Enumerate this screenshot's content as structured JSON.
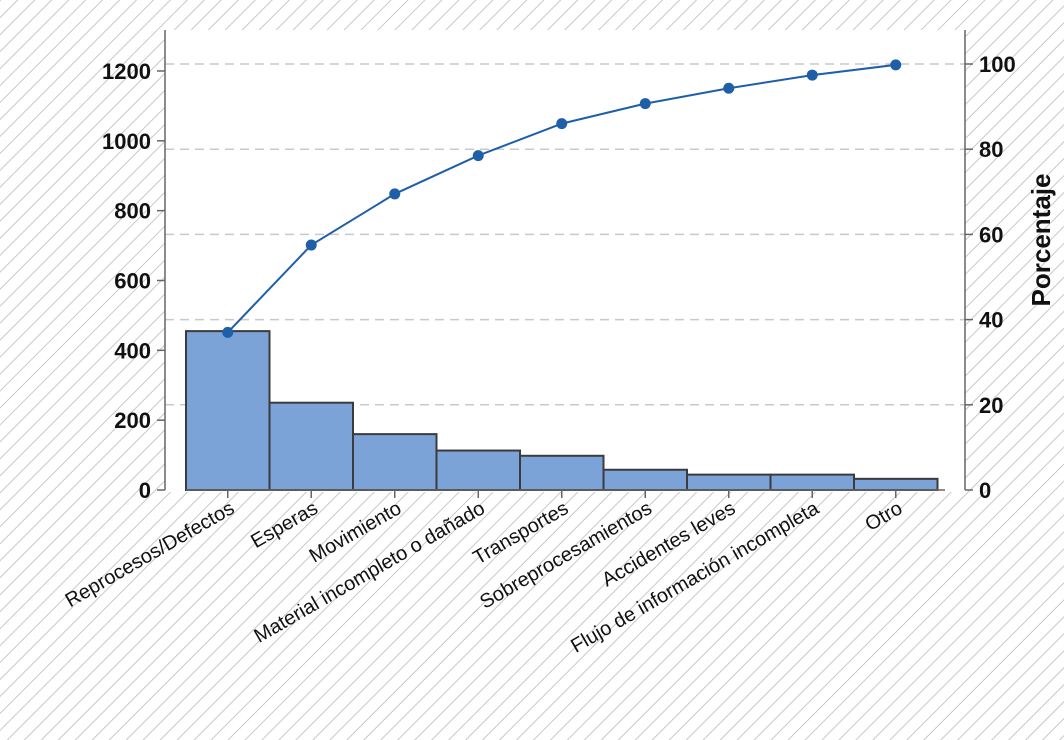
{
  "chart_data": {
    "type": "bar",
    "categories": [
      "Reprocesos/Defectos",
      "Esperas",
      "Movimiento",
      "Material incompleto o dañado",
      "Transportes",
      "Sobreprocesamientos",
      "Accidentes leves",
      "Flujo de información incompleta",
      "Otro"
    ],
    "series": [
      {
        "values": [
          455,
          250,
          160,
          113,
          98,
          58,
          44,
          44,
          32
        ]
      },
      {
        "values": [
          37,
          57.5,
          69.5,
          78.5,
          86,
          90.7,
          94.3,
          97.4,
          99.8
        ]
      }
    ],
    "ylim": [
      0,
      1220
    ],
    "y2lim": [
      0,
      100
    ],
    "yticks": [
      0,
      200,
      400,
      600,
      800,
      1000,
      1200
    ],
    "y2ticks": [
      0,
      20,
      40,
      60,
      80,
      100
    ],
    "y2label": "Porcentaje",
    "grid": "horizontal dashed at right-axis ticks",
    "colors": {
      "bar_fill": "#7ba3d8",
      "bar_stroke": "#3b3b3b",
      "line": "#1f5fa8",
      "background": "#ffffff",
      "hatch": "#c8c8c8"
    }
  }
}
